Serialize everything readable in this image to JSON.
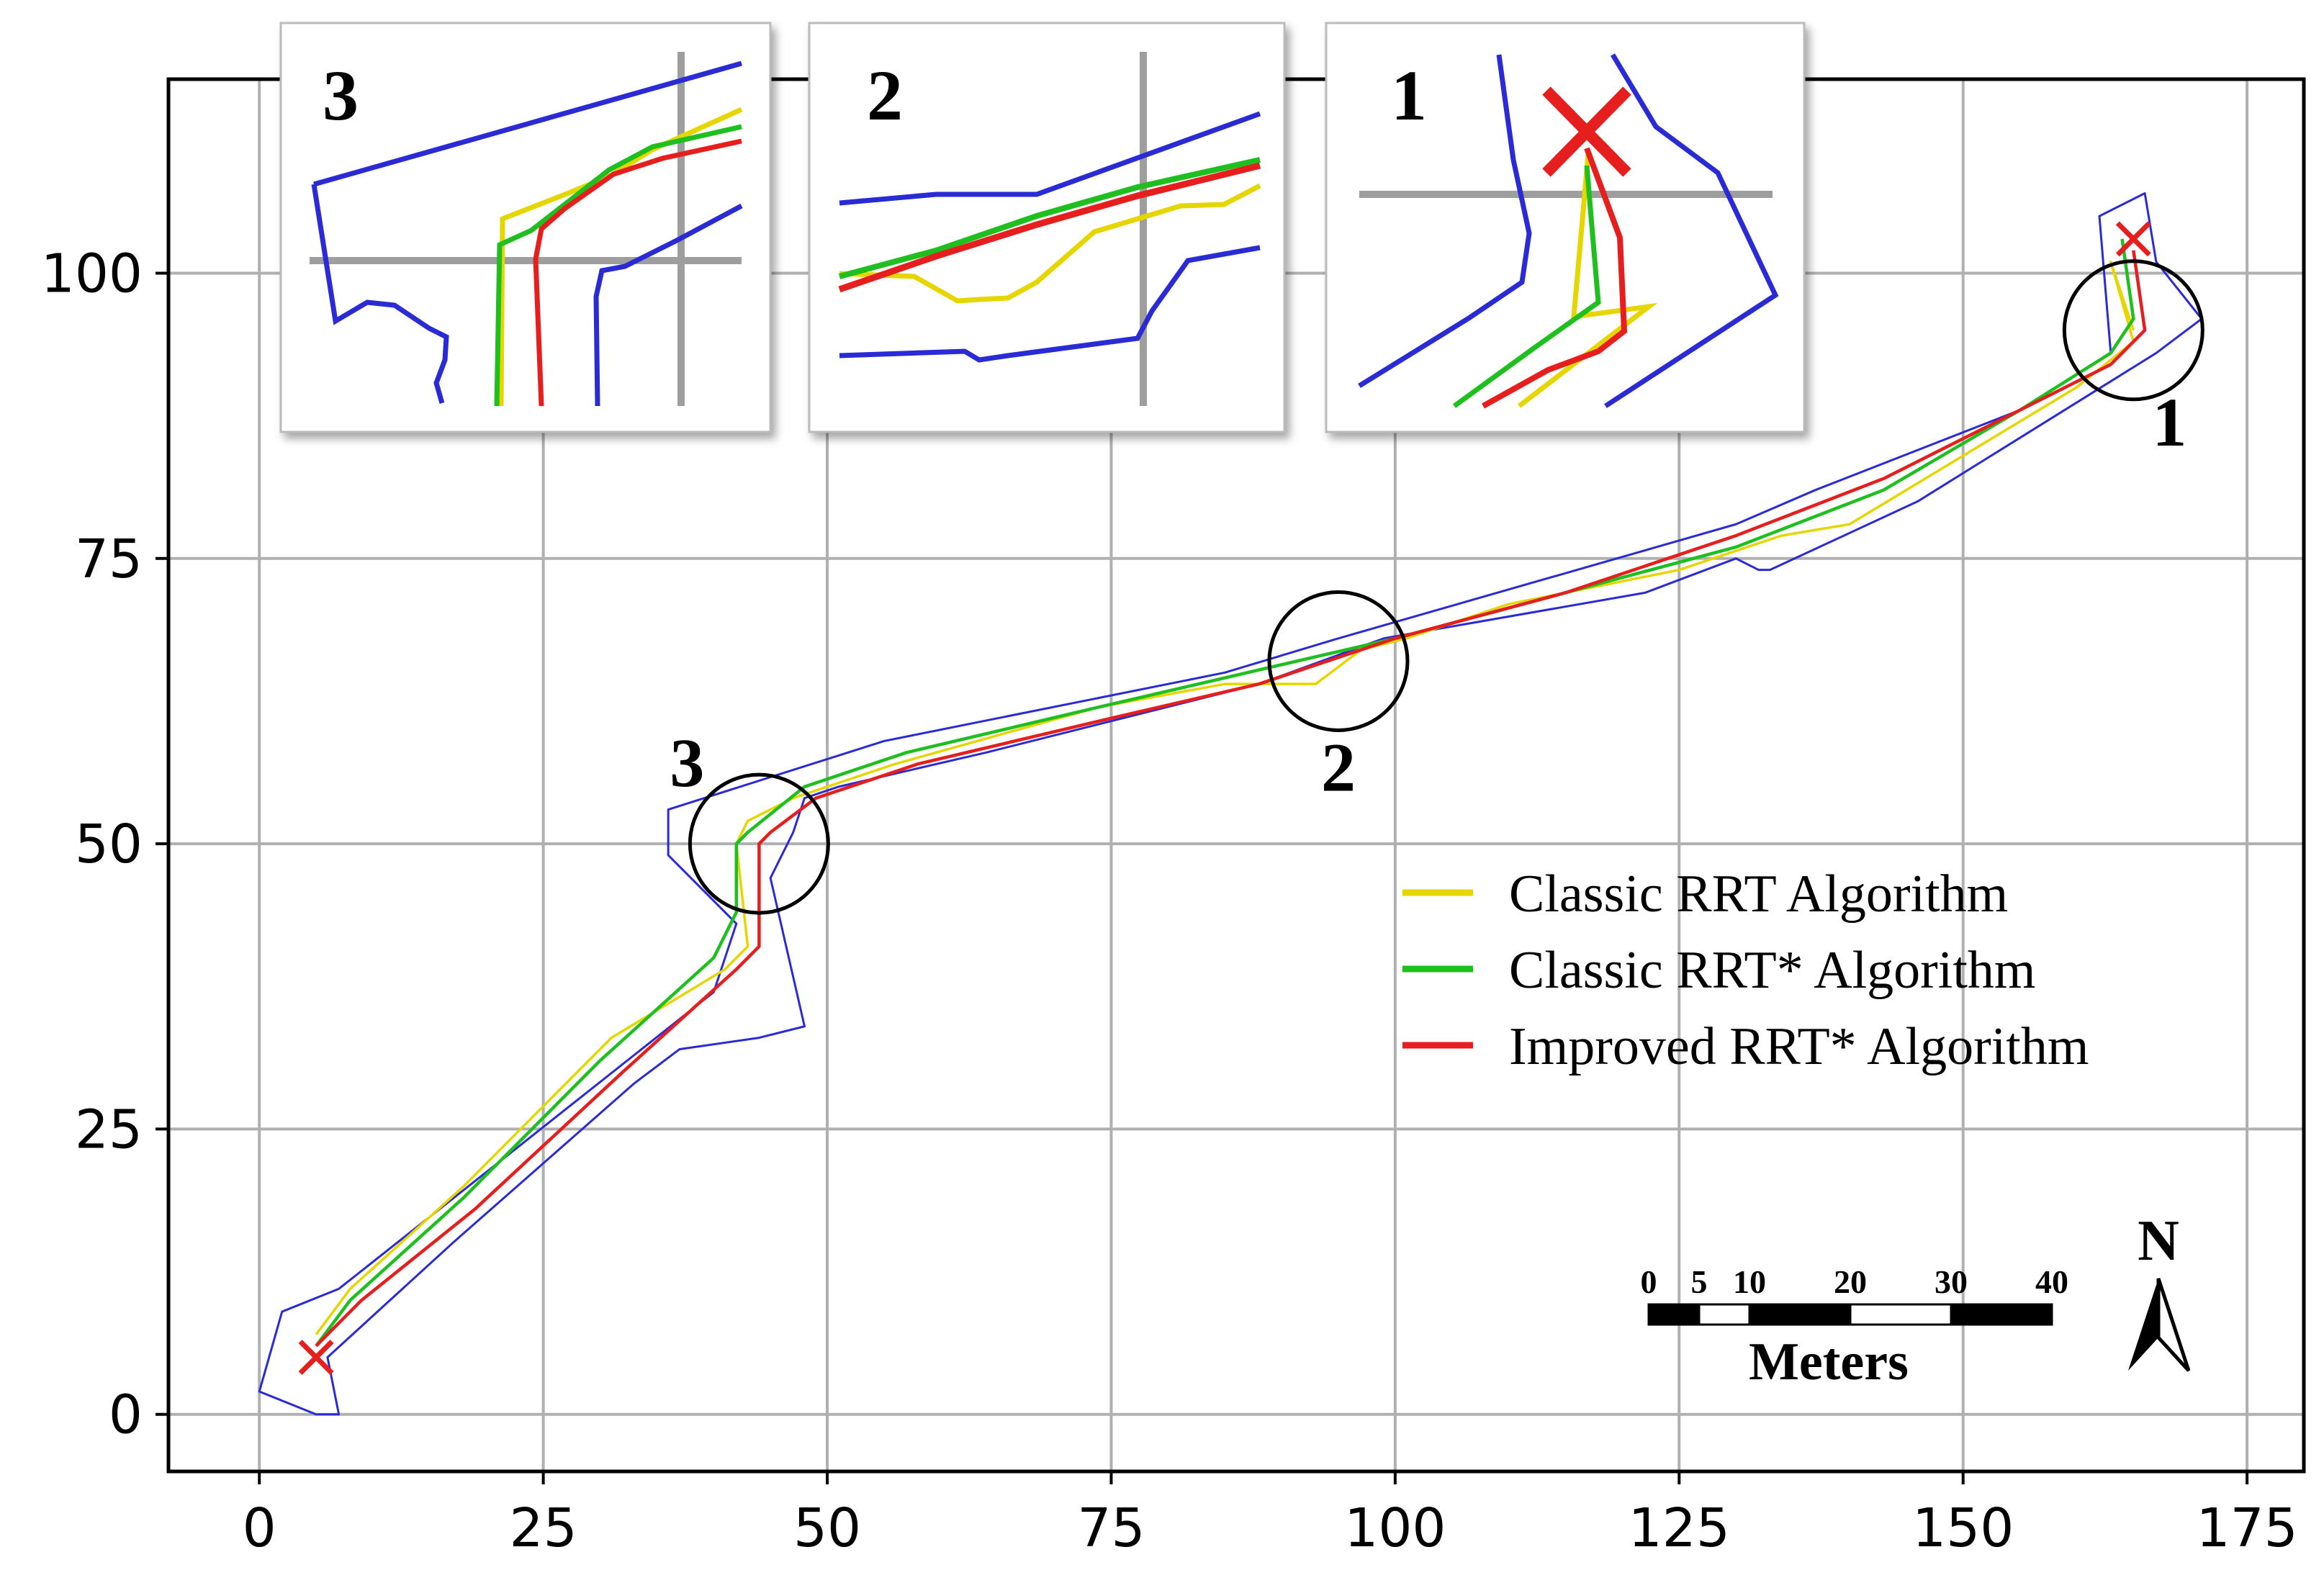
{
  "chart_data": {
    "type": "line",
    "title": "",
    "xlabel": "",
    "ylabel": "",
    "xlim": [
      -8,
      180
    ],
    "ylim": [
      -5,
      117
    ],
    "xticks": [
      0,
      25,
      50,
      75,
      100,
      125,
      150,
      175
    ],
    "yticks": [
      0,
      25,
      50,
      75,
      100
    ],
    "grid": true,
    "legend_position": "center-right",
    "corridor": {
      "color": "#2b2bd6",
      "upper": [
        [
          0,
          2
        ],
        [
          2,
          9
        ],
        [
          7,
          11
        ],
        [
          40,
          37
        ],
        [
          42,
          43
        ],
        [
          36,
          49
        ],
        [
          36,
          53
        ],
        [
          55,
          59
        ],
        [
          85,
          65
        ],
        [
          95,
          68
        ],
        [
          130,
          78
        ],
        [
          137,
          81
        ],
        [
          155,
          88
        ],
        [
          163,
          93
        ],
        [
          162,
          105
        ],
        [
          166,
          107
        ],
        [
          167,
          101
        ],
        [
          171,
          96
        ],
        [
          167,
          93
        ],
        [
          146,
          80
        ],
        [
          133,
          74
        ],
        [
          132,
          74
        ],
        [
          130,
          75
        ],
        [
          122,
          72
        ],
        [
          99,
          68
        ],
        [
          88,
          64
        ],
        [
          84,
          63
        ],
        [
          64,
          58
        ],
        [
          51,
          55
        ],
        [
          48,
          54
        ],
        [
          47,
          51
        ],
        [
          46,
          49
        ],
        [
          45,
          47
        ],
        [
          48,
          34
        ],
        [
          44,
          33
        ]
      ],
      "lower": [
        [
          0,
          2
        ],
        [
          5,
          0
        ],
        [
          7,
          0
        ],
        [
          6,
          5
        ],
        [
          17,
          15
        ],
        [
          33,
          29
        ],
        [
          37,
          32
        ],
        [
          44,
          33
        ]
      ]
    },
    "series": [
      {
        "name": "Classic RRT Algorithm",
        "color": "#e6d600",
        "x": [
          5,
          8,
          18,
          31,
          41,
          43,
          42,
          43,
          47,
          56,
          74,
          85,
          93,
          97,
          101,
          110,
          125,
          134,
          140,
          150,
          160,
          165,
          163,
          165
        ],
        "y": [
          7,
          11,
          20,
          33,
          39,
          41,
          50,
          52,
          54,
          57,
          62,
          64,
          64,
          67,
          68,
          71,
          74,
          77,
          78,
          84,
          90,
          94,
          101,
          95
        ]
      },
      {
        "name": "Classic RRT* Algorithm",
        "color": "#1fbf1f",
        "x": [
          5,
          8,
          18,
          30,
          40,
          42,
          42,
          43,
          48,
          57,
          74,
          87,
          100,
          115,
          130,
          143,
          155,
          163,
          165,
          164
        ],
        "y": [
          6,
          10,
          19,
          31,
          40,
          44,
          50,
          51,
          55,
          58,
          62,
          65,
          68,
          72,
          76,
          81,
          88,
          93,
          96,
          103
        ]
      },
      {
        "name": "Improved RRT* Algorithm",
        "color": "#e61e1e",
        "x": [
          5,
          9,
          19,
          32,
          42,
          44,
          44,
          45,
          49,
          58,
          75,
          88,
          100,
          115,
          130,
          143,
          155,
          163,
          166,
          165
        ],
        "y": [
          6,
          10,
          18,
          30,
          39,
          41,
          50,
          51,
          54,
          57,
          61,
          64,
          68,
          72,
          77,
          82,
          88,
          92,
          95,
          102
        ]
      }
    ],
    "markers": {
      "start": [
        5,
        5
      ],
      "goal": [
        165,
        103
      ]
    },
    "callouts": [
      {
        "label": "3",
        "center": [
          44,
          50
        ]
      },
      {
        "label": "2",
        "center": [
          95,
          66
        ]
      },
      {
        "label": "1",
        "center": [
          165,
          95
        ]
      }
    ],
    "insets": [
      {
        "label": "3"
      },
      {
        "label": "2"
      },
      {
        "label": "1"
      }
    ],
    "scale_bar": {
      "numbers": [
        "0",
        "5",
        "10",
        "20",
        "30",
        "40"
      ],
      "unit": "Meters"
    },
    "north": "N"
  }
}
